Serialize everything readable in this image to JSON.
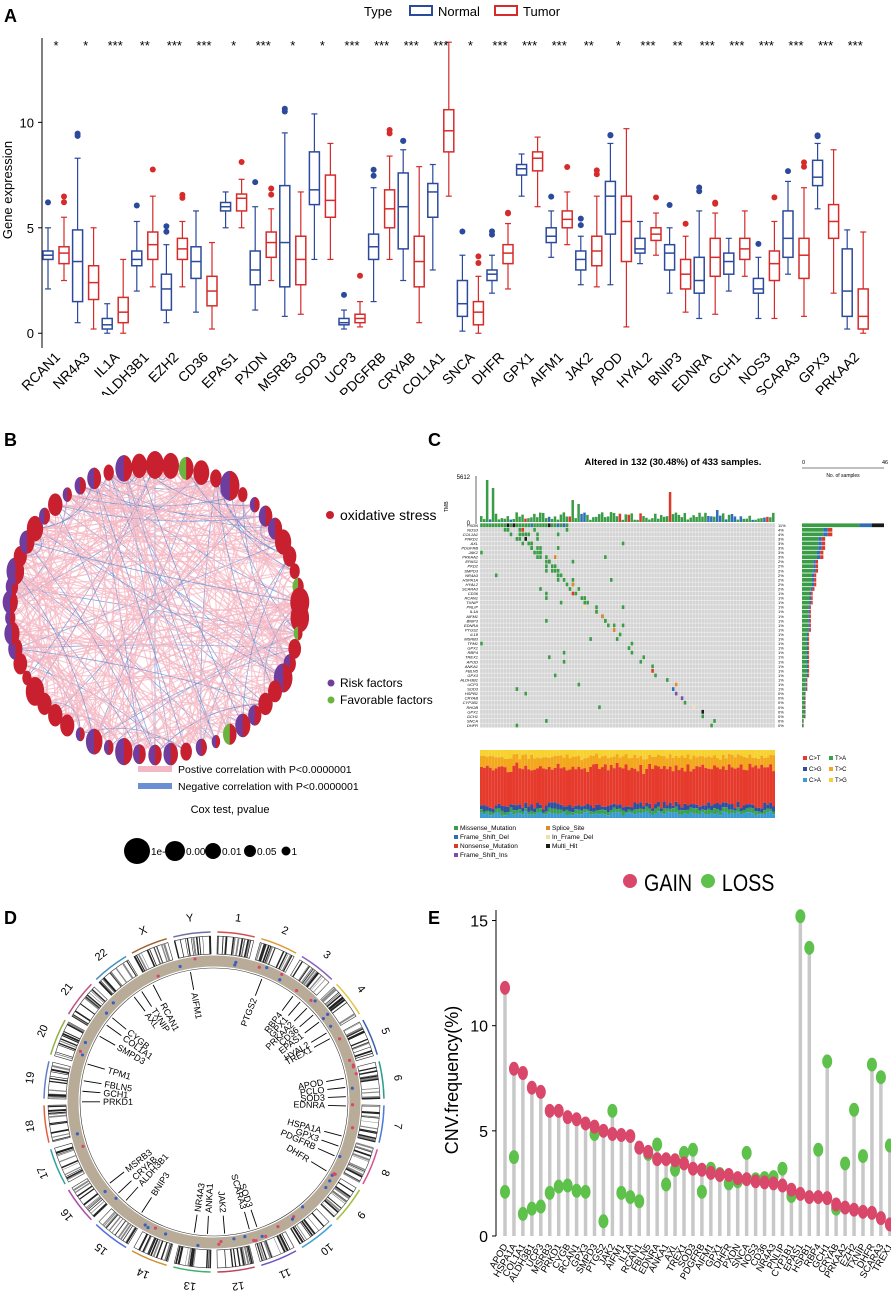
{
  "panels": {
    "A": "A",
    "B": "B",
    "C": "C",
    "D": "D",
    "E": "E"
  },
  "chart_data": [
    {
      "panel": "A",
      "type": "box",
      "legend_title": "Type",
      "series": [
        {
          "name": "Normal",
          "color": "#2b4a9c"
        },
        {
          "name": "Tumor",
          "color": "#d62b2b"
        }
      ],
      "ylabel": "Gene expression",
      "ylim": [
        -0.7,
        14
      ],
      "yticks": [
        0,
        5,
        10
      ],
      "categories": [
        "RCAN1",
        "NR4A3",
        "IL1A",
        "ALDH3B1",
        "EZH2",
        "CD36",
        "EPAS1",
        "PXDN",
        "MSRB3",
        "SOD3",
        "UCP3",
        "PDGFRB",
        "CRYAB",
        "COL1A1",
        "SNCA",
        "DHFR",
        "GPX1",
        "AIFM1",
        "JAK2",
        "APOD",
        "HYAL2",
        "BNIP3",
        "EDNRA",
        "GCH1",
        "NOS3",
        "SCARA3",
        "GPX3",
        "PRKAA2"
      ],
      "significance": [
        "*",
        "*",
        "***",
        "**",
        "***",
        "***",
        "*",
        "***",
        "*",
        "*",
        "***",
        "***",
        "***",
        "***",
        "*",
        "***",
        "***",
        "***",
        "**",
        "*",
        "***",
        "**",
        "***",
        "***",
        "***",
        "***",
        "***",
        "***"
      ],
      "normal": [
        [
          2.1,
          3.5,
          3.7,
          3.9,
          5.0
        ],
        [
          0.5,
          1.5,
          3.4,
          4.9,
          8.3
        ],
        [
          0,
          0.2,
          0.4,
          0.7,
          1.4
        ],
        [
          2.0,
          3.2,
          3.5,
          3.9,
          5.3
        ],
        [
          0.5,
          1.1,
          2.1,
          2.8,
          4.2
        ],
        [
          1.0,
          2.6,
          3.4,
          4.1,
          5.8
        ],
        [
          5.0,
          5.8,
          6.0,
          6.2,
          6.7
        ],
        [
          1.1,
          2.3,
          3.0,
          3.9,
          6.0
        ],
        [
          0.8,
          2.2,
          4.3,
          7.0,
          9.5
        ],
        [
          3.5,
          6.1,
          6.8,
          8.6,
          10.4
        ],
        [
          0.2,
          0.4,
          0.5,
          0.7,
          1.1
        ],
        [
          1.5,
          3.5,
          4.1,
          4.7,
          6.9
        ],
        [
          2.5,
          4.0,
          6.0,
          7.6,
          8.7
        ],
        [
          3.0,
          5.5,
          6.7,
          7.1,
          8.0
        ],
        [
          0.1,
          0.8,
          1.4,
          2.5,
          3.7
        ],
        [
          1.9,
          2.5,
          2.8,
          3.0,
          3.7
        ],
        [
          6.5,
          7.5,
          7.8,
          8.0,
          8.5
        ],
        [
          3.6,
          4.3,
          4.6,
          5.0,
          5.8
        ],
        [
          2.3,
          3.0,
          3.5,
          3.9,
          4.6
        ],
        [
          2.3,
          4.7,
          6.5,
          7.2,
          9.0
        ],
        [
          3.3,
          3.8,
          4.0,
          4.5,
          5.3
        ],
        [
          1.9,
          3.0,
          3.8,
          4.2,
          5.0
        ],
        [
          0.7,
          1.9,
          2.5,
          3.6,
          5.8
        ],
        [
          2.0,
          2.8,
          3.4,
          3.8,
          4.5
        ],
        [
          0.7,
          1.9,
          2.1,
          2.6,
          3.6
        ],
        [
          2.8,
          3.6,
          4.5,
          5.8,
          7.2
        ],
        [
          5.9,
          7.0,
          7.4,
          8.2,
          9.0
        ],
        [
          0.2,
          0.8,
          2.0,
          4.0,
          4.9
        ]
      ],
      "tumor": [
        [
          2.5,
          3.3,
          3.8,
          4.1,
          5.5
        ],
        [
          0.2,
          1.6,
          2.4,
          3.2,
          5.0
        ],
        [
          0,
          0.5,
          1.0,
          1.7,
          3.5
        ],
        [
          2.2,
          3.5,
          4.2,
          4.8,
          6.5
        ],
        [
          2.2,
          3.5,
          4.0,
          4.5,
          5.3
        ],
        [
          0.2,
          1.3,
          2.0,
          2.7,
          4.3
        ],
        [
          5.0,
          5.8,
          6.4,
          6.6,
          7.3
        ],
        [
          2.5,
          3.6,
          4.3,
          4.8,
          5.9
        ],
        [
          0.9,
          2.3,
          3.5,
          4.6,
          6.7
        ],
        [
          3.5,
          5.5,
          6.3,
          7.5,
          9.0
        ],
        [
          0.3,
          0.5,
          0.7,
          0.9,
          1.5
        ],
        [
          3.5,
          5.0,
          5.9,
          6.8,
          8.4
        ],
        [
          0.5,
          2.2,
          3.4,
          4.6,
          7.9
        ],
        [
          6.5,
          8.6,
          9.6,
          10.6,
          13.8
        ],
        [
          0,
          0.4,
          1.0,
          1.5,
          2.7
        ],
        [
          2.1,
          3.3,
          3.8,
          4.2,
          5.2
        ],
        [
          6.0,
          7.7,
          8.3,
          8.6,
          9.3
        ],
        [
          4.2,
          5.0,
          5.4,
          5.8,
          6.7
        ],
        [
          2.2,
          3.2,
          3.9,
          4.6,
          6.5
        ],
        [
          0.3,
          3.4,
          5.3,
          6.5,
          9.7
        ],
        [
          3.7,
          4.4,
          4.7,
          5.0,
          5.7
        ],
        [
          1.0,
          2.1,
          2.8,
          3.5,
          4.6
        ],
        [
          0.9,
          2.7,
          3.6,
          4.5,
          5.7
        ],
        [
          2.7,
          3.5,
          4.0,
          4.5,
          5.8
        ],
        [
          0.7,
          2.5,
          3.3,
          3.9,
          5.3
        ],
        [
          0.8,
          2.6,
          3.7,
          4.5,
          6.9
        ],
        [
          1.9,
          4.5,
          5.3,
          6.1,
          8.7
        ],
        [
          0,
          0.2,
          0.8,
          2.1,
          4.8
        ]
      ]
    },
    {
      "panel": "B",
      "type": "network",
      "legend": {
        "oxidative_stress": "oxidative stress",
        "risk": "Risk factors",
        "favorable": "Favorable factors",
        "pos_corr": "Postive correlation with P<0.0000001",
        "neg_corr": "Negative correlation with P<0.0000001",
        "cox_title": "Cox test, pvalue",
        "cox_levels": [
          "1e-04",
          "0.001",
          "0.01",
          "0.05",
          "1"
        ]
      },
      "colors": {
        "node": "#c8202f",
        "risk": "#6f3d9e",
        "favorable": "#6cb43f",
        "pos": "#f4b8c4",
        "neg": "#6b8fd4"
      }
    },
    {
      "panel": "C",
      "type": "oncoplot",
      "title": "Altered in 132 (30.48%) of 433 samples.",
      "tmb_label": "TMB",
      "tmb_max": "5612",
      "tmb_min": "0",
      "side_axis": [
        "0",
        "46"
      ],
      "side_label": "No. of samples",
      "genes": [
        "PXDN",
        "NOS3",
        "COL1A1",
        "PRKD1",
        "AXL",
        "PDGFRB",
        "JAK2",
        "PRKAA2",
        "EPAS1",
        "PKD2",
        "SMPD3",
        "NR4A3",
        "HSPA1A",
        "HYAL2",
        "SCARA3",
        "CD36",
        "RCAN1",
        "TXNIP",
        "PNLIP",
        "IL1A",
        "AIFM1",
        "BNIP3",
        "EDNRA",
        "PTGS2",
        "IL18",
        "MSRB3",
        "TPM1",
        "GPX1",
        "RBP4",
        "TREX1",
        "APOD",
        "ANKA1",
        "FBLN5",
        "GPX3",
        "ALDH3B1",
        "UCP3",
        "SOD3",
        "HSPB1",
        "CRYAB",
        "CYP1B1",
        "RHOB",
        "GPX1",
        "GCH1",
        "SNCA",
        "DHFR"
      ],
      "percents": [
        "11%",
        "4%",
        "4%",
        "3%",
        "3%",
        "3%",
        "3%",
        "3%",
        "2%",
        "2%",
        "2%",
        "2%",
        "2%",
        "2%",
        "2%",
        "1%",
        "1%",
        "1%",
        "1%",
        "1%",
        "1%",
        "1%",
        "1%",
        "1%",
        "1%",
        "1%",
        "1%",
        "1%",
        "1%",
        "1%",
        "1%",
        "1%",
        "1%",
        "1%",
        "1%",
        "1%",
        "1%",
        "0%",
        "0%",
        "0%",
        "0%",
        "0%",
        "0%",
        "0%",
        "0%"
      ],
      "counts": [
        46,
        17,
        17,
        13,
        13,
        13,
        12,
        12,
        9,
        9,
        9,
        8,
        8,
        8,
        7,
        6,
        6,
        6,
        5,
        5,
        5,
        5,
        5,
        5,
        4,
        4,
        4,
        4,
        4,
        4,
        4,
        4,
        4,
        4,
        3,
        3,
        3,
        2,
        2,
        2,
        2,
        2,
        2,
        1,
        1
      ],
      "mutation_legend": [
        "Missense_Mutation",
        "Splice_Site",
        "Frame_Shift_Del",
        "In_Frame_Del",
        "Nonsense_Mutation",
        "Multi_Hit",
        "Frame_Shift_Ins"
      ],
      "mutation_colors": [
        "#3a9c47",
        "#e08a2c",
        "#2e6fb6",
        "#f1dfa5",
        "#d83b2a",
        "#1a1a1a",
        "#7b4fa8"
      ],
      "transition_legend": [
        "C>T",
        "T>A",
        "C>G",
        "T>C",
        "C>A",
        "T>G"
      ],
      "transition_colors": [
        "#e53a2c",
        "#3aa04b",
        "#2d4fa0",
        "#f2a71d",
        "#3a9bd6",
        "#f7d12f"
      ]
    },
    {
      "panel": "D",
      "type": "circos",
      "chromosomes": [
        "1",
        "2",
        "3",
        "4",
        "5",
        "6",
        "7",
        "8",
        "9",
        "10",
        "11",
        "12",
        "13",
        "14",
        "15",
        "16",
        "17",
        "18",
        "19",
        "20",
        "21",
        "22",
        "X",
        "Y"
      ],
      "genes": [
        "AIFM1",
        "RCAN1",
        "TXNIP",
        "AXL",
        "CYGB",
        "COL1A1",
        "SMPD3",
        "TPM1",
        "FBLN5",
        "GCH1",
        "PRKD1",
        "MSRB3",
        "CRYAB",
        "ALDH3B1",
        "BNIP3",
        "NR4A3",
        "ANKA1",
        "JAK2",
        "SCARA3",
        "SOD3",
        "DHFR",
        "PDGFRB",
        "GPX3",
        "HSPA1A",
        "APOD",
        "PCLO",
        "SOD3",
        "EDNRA",
        "TREX1",
        "HYAL2",
        "PTGS2",
        "RBP4",
        "GPX1",
        "PRKAA2",
        "CD36",
        "EPAS1"
      ]
    },
    {
      "panel": "E",
      "type": "lollipop",
      "legend": [
        "GAIN",
        "LOSS"
      ],
      "colors": {
        "gain": "#d9476a",
        "loss": "#5ec14b",
        "stem": "#c8c8c8"
      },
      "ylabel": "CNV.frequency(%)",
      "ylim": [
        0,
        15.5
      ],
      "yticks": [
        0,
        5,
        10,
        15
      ],
      "categories": [
        "APOD",
        "HSPA1A",
        "COL1A1",
        "ALDH3B1",
        "UCP3",
        "MSRB3",
        "PRKD1",
        "CYGB",
        "RCAN1",
        "GPX3",
        "SMPD3",
        "PTGS2",
        "JAK2",
        "AIFM1",
        "IL1A",
        "RCAN1",
        "FBLN5",
        "EDNRA",
        "ANKA1",
        "AXL",
        "TREX1",
        "SOD3",
        "PDGFRB",
        "AIFM1",
        "GPX1",
        "DHFR",
        "PXDN",
        "SNCA",
        "NOS3",
        "CD36",
        "NR4A3",
        "PNLIP",
        "CYP1B1",
        "EPAS1",
        "HSPB1",
        "RBP4",
        "GCH1",
        "CRYAB",
        "PRKAA2",
        "EZH2",
        "TXNIP",
        "DHFR",
        "SCARA3",
        "TREX1"
      ],
      "gain": [
        11.8,
        7.95,
        7.75,
        7.05,
        6.85,
        5.95,
        5.95,
        5.65,
        5.55,
        5.35,
        5.2,
        5.0,
        4.85,
        4.8,
        4.75,
        4.2,
        4.0,
        3.65,
        3.65,
        3.6,
        3.45,
        3.2,
        3.15,
        3.0,
        2.9,
        2.9,
        2.75,
        2.7,
        2.6,
        2.55,
        2.5,
        2.4,
        2.2,
        2.0,
        1.85,
        1.85,
        1.8,
        1.5,
        1.35,
        1.25,
        1.15,
        1.1,
        0.85,
        0.55
      ],
      "loss": [
        2.1,
        3.75,
        1.05,
        1.3,
        1.4,
        2.05,
        2.35,
        2.4,
        2.15,
        2.1,
        4.85,
        0.7,
        5.95,
        2.05,
        1.85,
        1.65,
        3.9,
        4.35,
        2.45,
        3.15,
        3.95,
        4.1,
        2.1,
        3.2,
        2.95,
        2.5,
        2.6,
        3.95,
        2.7,
        2.75,
        2.8,
        3.2,
        1.9,
        15.2,
        13.7,
        4.1,
        8.3,
        1.3,
        3.45,
        6.0,
        3.8,
        8.15,
        7.55,
        4.3
      ]
    }
  ]
}
